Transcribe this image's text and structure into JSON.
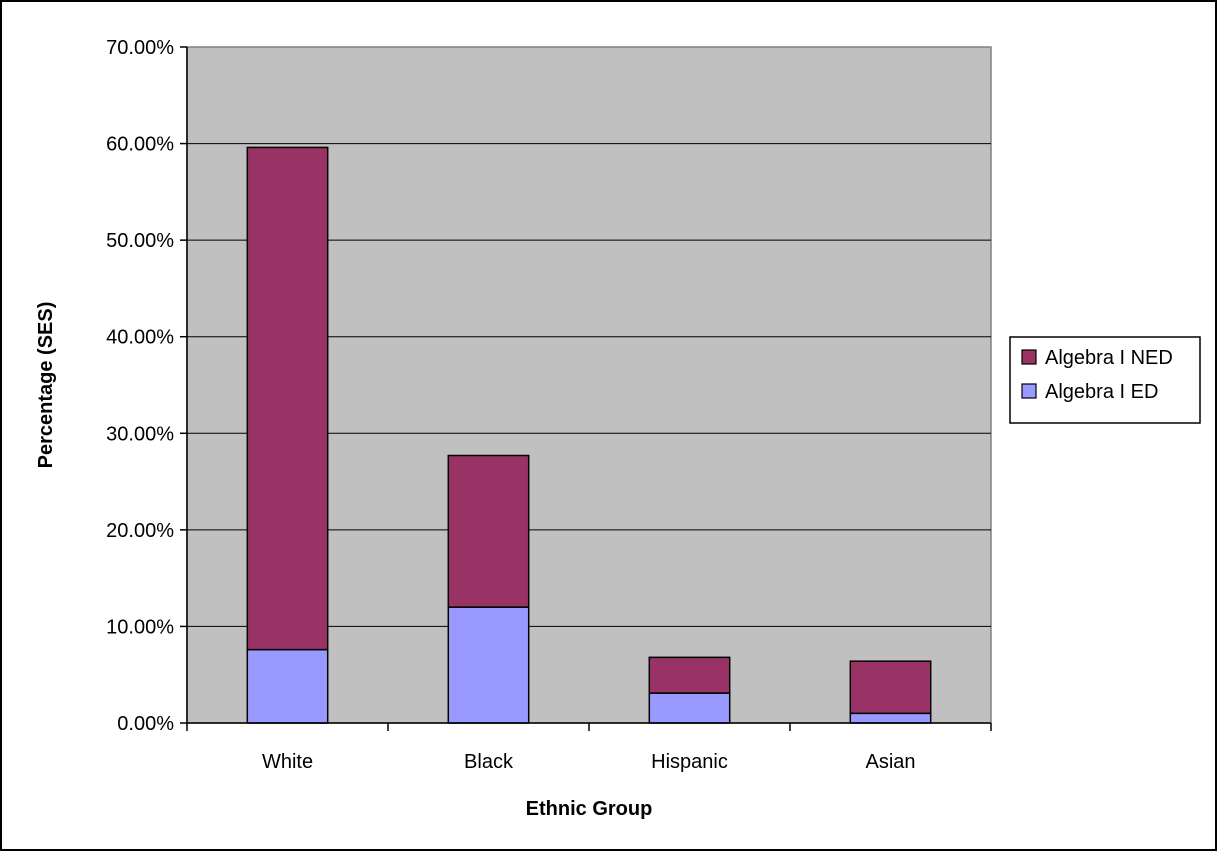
{
  "chart_data": {
    "type": "bar",
    "stacked": true,
    "categories": [
      "White",
      "Black",
      "Hispanic",
      "Asian"
    ],
    "series": [
      {
        "name": "Algebra I ED",
        "values": [
          7.6,
          12.0,
          3.1,
          1.0
        ],
        "color": "#9999ff"
      },
      {
        "name": "Algebra I NED",
        "values": [
          52.0,
          15.7,
          3.7,
          5.4
        ],
        "color": "#993366"
      }
    ],
    "xlabel": "Ethnic Group",
    "ylabel": "Percentage (SES)",
    "ylim": [
      0,
      70
    ],
    "yticks": [
      "0.00%",
      "10.00%",
      "20.00%",
      "30.00%",
      "40.00%",
      "50.00%",
      "60.00%",
      "70.00%"
    ],
    "grid": true,
    "plot_background": "#c0c0c0",
    "legend_position": "right",
    "legend_order": [
      "Algebra I NED",
      "Algebra I ED"
    ]
  }
}
